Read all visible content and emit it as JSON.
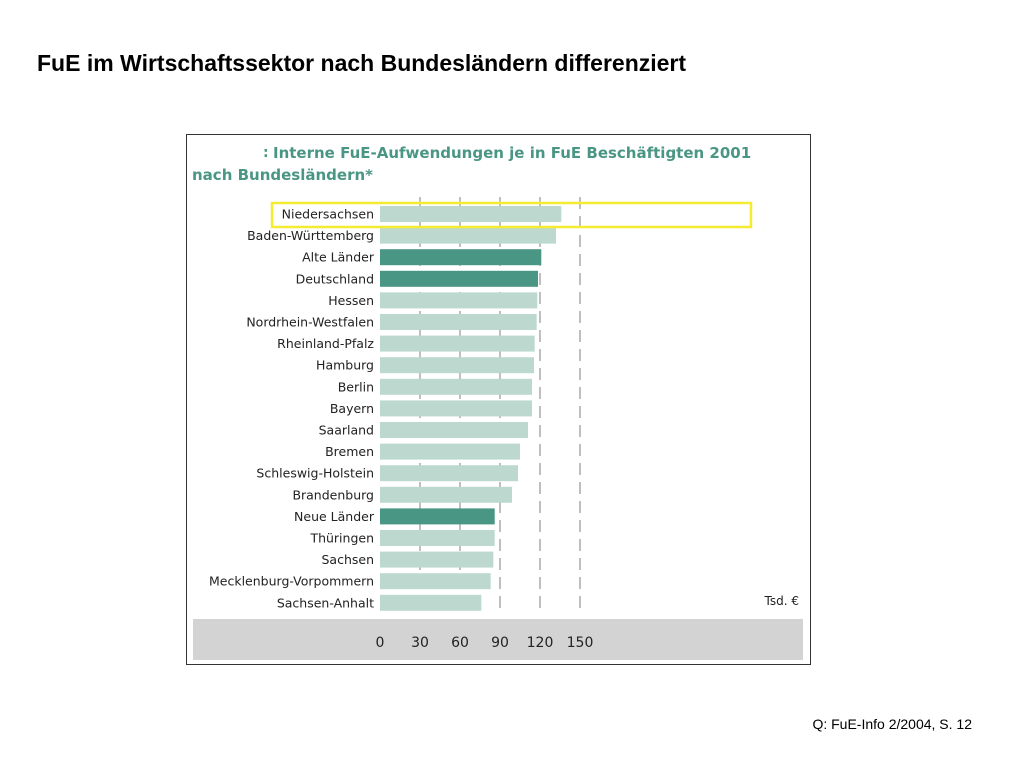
{
  "slide": {
    "title": "FuE im Wirtschaftssektor nach Bundesländern differenziert",
    "source": "Q: FuE-Info 2/2004, S. 12"
  },
  "chart_data": {
    "type": "bar",
    "orientation": "horizontal",
    "title_prefix": ":",
    "title_line1": "Interne FuE-Aufwendungen je in FuE Beschäftigten 2001",
    "title_line2": "nach Bundesländern*",
    "unit_label": "Tsd. €",
    "xlim": [
      0,
      150
    ],
    "xticks": [
      0,
      30,
      60,
      90,
      120,
      150
    ],
    "grid": true,
    "colors": {
      "regular": "#bdd8cf",
      "highlight": "#4a9684",
      "frame": "#f5ec32",
      "axis_band": "#d3d3d3",
      "title": "#4a9684"
    },
    "framed_category": "Niedersachsen",
    "categories": [
      "Niedersachsen",
      "Baden-Württemberg",
      "Alte Länder",
      "Deutschland",
      "Hessen",
      "Nordrhein-Westfalen",
      "Rheinland-Pfalz",
      "Hamburg",
      "Berlin",
      "Bayern",
      "Saarland",
      "Bremen",
      "Schleswig-Holstein",
      "Brandenburg",
      "Neue Länder",
      "Thüringen",
      "Sachsen",
      "Mecklenburg-Vorpommern",
      "Sachsen-Anhalt"
    ],
    "values": [
      136,
      132,
      121,
      118.5,
      118,
      117.5,
      116,
      115.5,
      114,
      114,
      111,
      105,
      103.5,
      99,
      86,
      86,
      85,
      83,
      76
    ],
    "highlighted": [
      false,
      false,
      true,
      true,
      false,
      false,
      false,
      false,
      false,
      false,
      false,
      false,
      false,
      false,
      true,
      false,
      false,
      false,
      false
    ]
  }
}
